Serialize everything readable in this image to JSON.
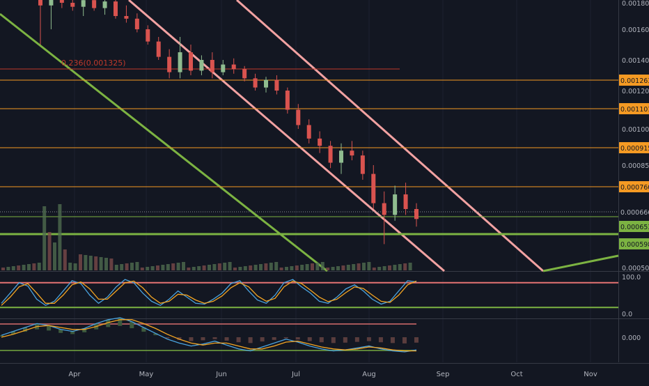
{
  "colors": {
    "background": "#131722",
    "axis_text": "#b2b5be",
    "grid": "#1e2230",
    "candle_up": "#8fbc8f",
    "candle_down": "#d9534f",
    "horizontal_level": "#f59a23",
    "fib_line": "#c0392b",
    "channel_line": "#f2a2a2",
    "trend_line": "#7cb342",
    "stoch_k": "#4aa3df",
    "stoch_d": "#f5a623",
    "osc_upper": "#e57373",
    "osc_lower": "#7cb342"
  },
  "chart_data": [
    {
      "type": "candlestick",
      "panel": "price",
      "x_axis_labels": [
        "Apr",
        "May",
        "Jun",
        "Jul",
        "Aug",
        "Sep",
        "Oct",
        "Nov"
      ],
      "y_ticks": [
        "0.001800",
        "0.001600",
        "0.001400",
        "0.001200",
        "0.001000",
        "0.000850",
        "0.000500"
      ],
      "price_levels": [
        {
          "label": "0.001263",
          "value": 0.001263
        },
        {
          "label": "0.001101",
          "value": 0.001101
        },
        {
          "label": "0.000915",
          "value": 0.000915
        },
        {
          "label": "0.000760",
          "value": 0.00076
        }
      ],
      "support_levels": [
        {
          "label": "0.000653",
          "value": 0.000653
        },
        {
          "label": "0.000598",
          "value": 0.000598
        }
      ],
      "last_price": {
        "label": "0.000666",
        "value": 0.000666
      },
      "annotation": {
        "text": "0.236(0.001325)",
        "value": 0.001325
      },
      "series": [
        {
          "values": [
            {
              "o": 0.00205,
              "h": 0.00212,
              "l": 0.0015,
              "c": 0.00178
            },
            {
              "o": 0.00178,
              "h": 0.0019,
              "l": 0.0016,
              "c": 0.00184
            },
            {
              "o": 0.00184,
              "h": 0.00188,
              "l": 0.00176,
              "c": 0.0018
            },
            {
              "o": 0.0018,
              "h": 0.00186,
              "l": 0.00174,
              "c": 0.00177
            },
            {
              "o": 0.00177,
              "h": 0.00184,
              "l": 0.0017,
              "c": 0.00182
            },
            {
              "o": 0.00182,
              "h": 0.00185,
              "l": 0.00174,
              "c": 0.00176
            },
            {
              "o": 0.00176,
              "h": 0.00183,
              "l": 0.00171,
              "c": 0.00181
            },
            {
              "o": 0.00181,
              "h": 0.00183,
              "l": 0.00168,
              "c": 0.0017
            },
            {
              "o": 0.0017,
              "h": 0.00178,
              "l": 0.00165,
              "c": 0.00168
            },
            {
              "o": 0.00168,
              "h": 0.00172,
              "l": 0.00158,
              "c": 0.0016
            },
            {
              "o": 0.0016,
              "h": 0.00163,
              "l": 0.0015,
              "c": 0.00152
            },
            {
              "o": 0.00152,
              "h": 0.00155,
              "l": 0.0014,
              "c": 0.00142
            },
            {
              "o": 0.00142,
              "h": 0.00147,
              "l": 0.00128,
              "c": 0.00132
            },
            {
              "o": 0.00132,
              "h": 0.00155,
              "l": 0.00128,
              "c": 0.00145
            },
            {
              "o": 0.00145,
              "h": 0.0015,
              "l": 0.0013,
              "c": 0.00133
            },
            {
              "o": 0.00133,
              "h": 0.00143,
              "l": 0.0013,
              "c": 0.0014
            },
            {
              "o": 0.0014,
              "h": 0.00145,
              "l": 0.00128,
              "c": 0.00132
            },
            {
              "o": 0.00132,
              "h": 0.0014,
              "l": 0.0013,
              "c": 0.00137
            },
            {
              "o": 0.00137,
              "h": 0.00141,
              "l": 0.00131,
              "c": 0.00134
            },
            {
              "o": 0.00134,
              "h": 0.00136,
              "l": 0.00126,
              "c": 0.00128
            },
            {
              "o": 0.00128,
              "h": 0.00131,
              "l": 0.0012,
              "c": 0.00122
            },
            {
              "o": 0.00122,
              "h": 0.00129,
              "l": 0.00119,
              "c": 0.00127
            },
            {
              "o": 0.00127,
              "h": 0.0013,
              "l": 0.00118,
              "c": 0.0012
            },
            {
              "o": 0.0012,
              "h": 0.00122,
              "l": 0.00108,
              "c": 0.0011
            },
            {
              "o": 0.0011,
              "h": 0.00113,
              "l": 0.001,
              "c": 0.00102
            },
            {
              "o": 0.00102,
              "h": 0.00105,
              "l": 0.00094,
              "c": 0.00096
            },
            {
              "o": 0.00096,
              "h": 0.00099,
              "l": 0.0009,
              "c": 0.00093
            },
            {
              "o": 0.00093,
              "h": 0.00095,
              "l": 0.00084,
              "c": 0.00086
            },
            {
              "o": 0.00086,
              "h": 0.00094,
              "l": 0.00082,
              "c": 0.00091
            },
            {
              "o": 0.00091,
              "h": 0.00095,
              "l": 0.00087,
              "c": 0.00089
            },
            {
              "o": 0.00089,
              "h": 0.00091,
              "l": 0.0008,
              "c": 0.00082
            },
            {
              "o": 0.00082,
              "h": 0.00085,
              "l": 0.0007,
              "c": 0.00072
            },
            {
              "o": 0.00072,
              "h": 0.00076,
              "l": 0.00058,
              "c": 0.00068
            },
            {
              "o": 0.00068,
              "h": 0.00078,
              "l": 0.00066,
              "c": 0.00075
            },
            {
              "o": 0.00075,
              "h": 0.00079,
              "l": 0.00068,
              "c": 0.0007
            },
            {
              "o": 0.0007,
              "h": 0.00072,
              "l": 0.00064,
              "c": 0.000666
            }
          ]
        }
      ]
    },
    {
      "type": "line",
      "panel": "stochastic",
      "y_ticks": [
        "100.0",
        "0.0"
      ],
      "upper_band": 80,
      "lower_band": 20,
      "series": [
        {
          "values": [
            30,
            55,
            80,
            72,
            40,
            25,
            35,
            60,
            85,
            78,
            50,
            30,
            45,
            70,
            88,
            80,
            55,
            35,
            25,
            40,
            60,
            45,
            30,
            28,
            40,
            55,
            78,
            85,
            60,
            38,
            30,
            50,
            80,
            88,
            70,
            55,
            35,
            30,
            45,
            65,
            75,
            60,
            40,
            28,
            35,
            60,
            85,
            82
          ]
        },
        {
          "values": [
            25,
            45,
            70,
            78,
            55,
            30,
            30,
            50,
            75,
            82,
            65,
            40,
            40,
            60,
            80,
            84,
            68,
            45,
            30,
            35,
            52,
            50,
            38,
            30,
            35,
            48,
            68,
            80,
            70,
            48,
            35,
            42,
            70,
            84,
            78,
            62,
            45,
            34,
            40,
            56,
            70,
            66,
            50,
            35,
            32,
            50,
            75,
            84
          ]
        }
      ]
    },
    {
      "type": "line",
      "panel": "macd",
      "y_ticks": [
        "0.000"
      ],
      "series": [
        {
          "values": [
            2,
            6,
            10,
            14,
            12,
            8,
            6,
            9,
            14,
            18,
            20,
            16,
            10,
            4,
            -2,
            -6,
            -9,
            -7,
            -4,
            -8,
            -12,
            -14,
            -10,
            -6,
            -2,
            -5,
            -9,
            -12,
            -14,
            -13,
            -11,
            -9,
            -12,
            -14,
            -15,
            -13
          ]
        },
        {
          "values": [
            0,
            3,
            7,
            11,
            12,
            10,
            8,
            8,
            11,
            15,
            18,
            18,
            14,
            9,
            3,
            -2,
            -6,
            -8,
            -6,
            -6,
            -9,
            -12,
            -12,
            -9,
            -5,
            -4,
            -7,
            -10,
            -12,
            -13,
            -12,
            -10,
            -11,
            -13,
            -14,
            -14
          ]
        }
      ]
    }
  ]
}
